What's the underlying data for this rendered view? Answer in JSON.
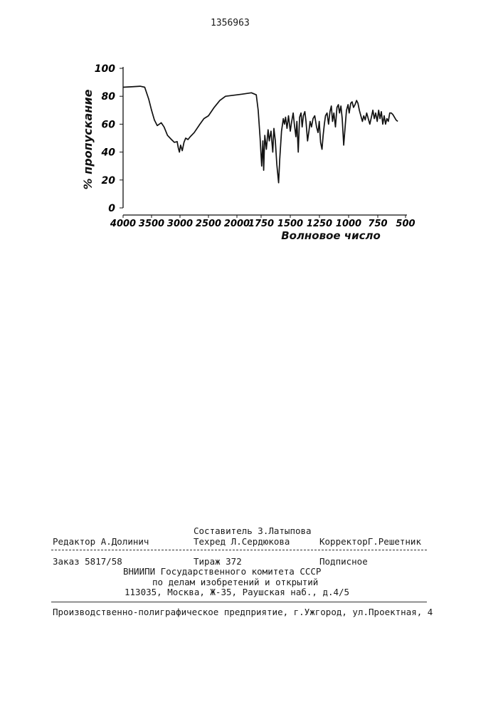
{
  "document": {
    "patent_number": "1356963"
  },
  "chart_data": {
    "type": "line",
    "ylabel": "% пропускание",
    "xlabel": "Волновое число",
    "x_ticks": [
      4000,
      3500,
      3000,
      2500,
      2000,
      1750,
      1500,
      1250,
      1000,
      750,
      500
    ],
    "x_tick_labels": [
      "4000",
      "3500",
      "3000",
      "2500",
      "2000",
      "1750",
      "1500",
      "1250",
      "1000",
      "750",
      "500"
    ],
    "y_ticks": [
      0,
      20,
      40,
      60,
      80,
      100
    ],
    "y_tick_labels": [
      "0",
      "20",
      "40",
      "60",
      "80",
      "100"
    ],
    "ylim": [
      0,
      100
    ],
    "xlim": [
      4000,
      500
    ],
    "grid": false,
    "series": [
      {
        "points": [
          [
            4000,
            86.5
          ],
          [
            3850,
            86.8
          ],
          [
            3700,
            87.2
          ],
          [
            3620,
            86.5
          ],
          [
            3550,
            78
          ],
          [
            3500,
            70
          ],
          [
            3450,
            63
          ],
          [
            3400,
            59
          ],
          [
            3330,
            61
          ],
          [
            3280,
            58
          ],
          [
            3220,
            52
          ],
          [
            3150,
            49
          ],
          [
            3100,
            47
          ],
          [
            3050,
            47.5
          ],
          [
            3030,
            43
          ],
          [
            3010,
            40
          ],
          [
            2990,
            45
          ],
          [
            2960,
            41
          ],
          [
            2930,
            47
          ],
          [
            2900,
            50
          ],
          [
            2860,
            49
          ],
          [
            2820,
            51
          ],
          [
            2750,
            54
          ],
          [
            2650,
            60
          ],
          [
            2580,
            64
          ],
          [
            2500,
            66
          ],
          [
            2400,
            72
          ],
          [
            2300,
            77
          ],
          [
            2200,
            80
          ],
          [
            2100,
            80.5
          ],
          [
            2000,
            81
          ],
          [
            1950,
            81.5
          ],
          [
            1900,
            82
          ],
          [
            1850,
            82.5
          ],
          [
            1800,
            81
          ],
          [
            1780,
            70
          ],
          [
            1760,
            50
          ],
          [
            1745,
            30
          ],
          [
            1735,
            48
          ],
          [
            1728,
            27
          ],
          [
            1718,
            52
          ],
          [
            1705,
            42
          ],
          [
            1690,
            56
          ],
          [
            1680,
            48
          ],
          [
            1665,
            55
          ],
          [
            1650,
            40
          ],
          [
            1640,
            57
          ],
          [
            1628,
            48
          ],
          [
            1615,
            31
          ],
          [
            1600,
            18
          ],
          [
            1590,
            35
          ],
          [
            1575,
            55
          ],
          [
            1560,
            64
          ],
          [
            1550,
            60
          ],
          [
            1540,
            65
          ],
          [
            1528,
            57
          ],
          [
            1515,
            66
          ],
          [
            1500,
            55
          ],
          [
            1488,
            62
          ],
          [
            1475,
            68
          ],
          [
            1465,
            60
          ],
          [
            1452,
            51
          ],
          [
            1443,
            62
          ],
          [
            1432,
            40
          ],
          [
            1420,
            65
          ],
          [
            1408,
            68
          ],
          [
            1398,
            58
          ],
          [
            1388,
            66
          ],
          [
            1375,
            69
          ],
          [
            1365,
            62
          ],
          [
            1352,
            48
          ],
          [
            1340,
            55
          ],
          [
            1330,
            62
          ],
          [
            1318,
            58
          ],
          [
            1305,
            64
          ],
          [
            1290,
            66
          ],
          [
            1275,
            58
          ],
          [
            1262,
            54
          ],
          [
            1252,
            62
          ],
          [
            1240,
            47
          ],
          [
            1228,
            42
          ],
          [
            1218,
            52
          ],
          [
            1208,
            60
          ],
          [
            1198,
            66
          ],
          [
            1185,
            68
          ],
          [
            1172,
            60
          ],
          [
            1160,
            69
          ],
          [
            1148,
            73
          ],
          [
            1138,
            62
          ],
          [
            1126,
            68
          ],
          [
            1113,
            58
          ],
          [
            1100,
            72
          ],
          [
            1088,
            74
          ],
          [
            1078,
            68
          ],
          [
            1066,
            73
          ],
          [
            1055,
            64
          ],
          [
            1042,
            45
          ],
          [
            1030,
            58
          ],
          [
            1018,
            70
          ],
          [
            1005,
            74
          ],
          [
            995,
            68
          ],
          [
            982,
            75
          ],
          [
            970,
            76
          ],
          [
            958,
            72
          ],
          [
            945,
            74
          ],
          [
            932,
            77
          ],
          [
            920,
            75
          ],
          [
            908,
            70
          ],
          [
            895,
            66
          ],
          [
            882,
            62
          ],
          [
            870,
            66
          ],
          [
            858,
            63
          ],
          [
            845,
            68
          ],
          [
            832,
            64
          ],
          [
            818,
            60
          ],
          [
            805,
            65
          ],
          [
            792,
            70
          ],
          [
            780,
            64
          ],
          [
            768,
            68
          ],
          [
            755,
            62
          ],
          [
            742,
            70
          ],
          [
            730,
            64
          ],
          [
            718,
            69
          ],
          [
            705,
            60
          ],
          [
            692,
            66
          ],
          [
            680,
            60
          ],
          [
            668,
            64
          ],
          [
            655,
            62
          ],
          [
            642,
            68
          ],
          [
            628,
            68
          ],
          [
            615,
            67
          ],
          [
            600,
            65
          ],
          [
            585,
            63
          ],
          [
            570,
            62
          ]
        ]
      }
    ]
  },
  "footer": {
    "compiler": "Составитель З.Латыпова",
    "editor": "Редактор А.Долинич",
    "techred": "Техред Л.Сердюкова",
    "corrector": "КорректорГ.Решетник",
    "order": "Заказ 5817/58",
    "print_run": "Тираж  372",
    "subscription": "Подписное",
    "org_line1": "ВНИИПИ Государственного комитета СССР",
    "org_line2": "по делам изобретений и открытий",
    "org_line3": "113035, Москва, Ж-35, Раушская наб., д.4/5",
    "printer": "Производственно-полиграфическое предприятие, г.Ужгород, ул.Проектная, 4"
  }
}
